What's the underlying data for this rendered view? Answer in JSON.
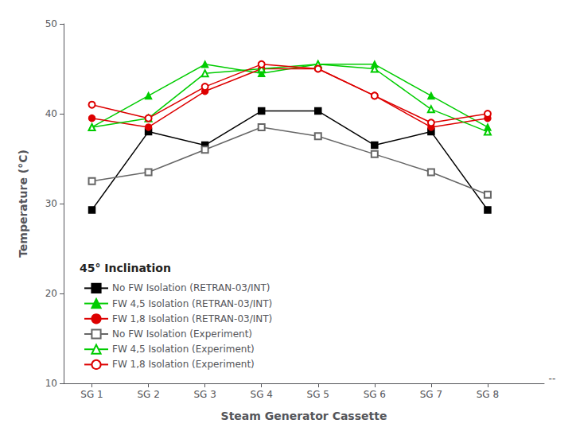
{
  "chart_data": {
    "type": "line",
    "xlabel": "Steam Generator Cassette",
    "ylabel": "Temperature (°C)",
    "x": [
      1,
      2,
      3,
      4,
      5,
      6,
      7,
      8
    ],
    "xlim": [
      0.5,
      9.0
    ],
    "xticks": [
      {
        "value": 1,
        "label": "SG 1"
      },
      {
        "value": 2,
        "label": "SG 2"
      },
      {
        "value": 3,
        "label": "SG 3"
      },
      {
        "value": 4,
        "label": "SG 4"
      },
      {
        "value": 5,
        "label": "SG 5"
      },
      {
        "value": 6,
        "label": "SG 6"
      },
      {
        "value": 7,
        "label": "SG 7"
      },
      {
        "value": 8,
        "label": "SG 8"
      }
    ],
    "ylim": [
      10,
      50
    ],
    "yticks": [
      10,
      20,
      30,
      40,
      50
    ],
    "grid": false,
    "legend": "lower left",
    "annotations": [
      {
        "text": "45° Inclination"
      },
      {
        "text": "--",
        "x": 9.05,
        "y": 10
      }
    ],
    "series": [
      {
        "name": "No FW Isolation (RETRAN-03/INT)",
        "color": "#000000",
        "marker": "square",
        "values": [
          29.3,
          38.0,
          36.5,
          40.3,
          40.3,
          36.5,
          38.0,
          29.3
        ]
      },
      {
        "name": "FW 4,5 Isolation (RETRAN-03/INT)",
        "color": "#00cc00",
        "marker": "triangle",
        "values": [
          38.5,
          42.0,
          45.5,
          44.5,
          45.5,
          45.5,
          42.0,
          38.5
        ]
      },
      {
        "name": "FW 1,8 Isolation (RETRAN-03/INT)",
        "color": "#dd0000",
        "marker": "circle",
        "values": [
          39.5,
          38.5,
          42.5,
          45.0,
          45.0,
          42.0,
          38.5,
          39.5
        ]
      },
      {
        "name": "No FW Isolation (Experiment)",
        "color": "#666666",
        "marker": "open square",
        "values": [
          32.5,
          33.5,
          36.0,
          38.5,
          37.5,
          35.5,
          33.5,
          31.0
        ]
      },
      {
        "name": "FW 4,5 Isolation (Experiment)",
        "color": "#00cc00",
        "marker": "open triangle",
        "values": [
          38.5,
          39.5,
          44.5,
          45.0,
          45.5,
          45.0,
          40.5,
          38.0
        ]
      },
      {
        "name": "FW 1,8 Isolation (Experiment)",
        "color": "#dd0000",
        "marker": "open circle",
        "values": [
          41.0,
          39.5,
          43.0,
          45.5,
          45.0,
          42.0,
          39.0,
          40.0
        ]
      }
    ]
  }
}
